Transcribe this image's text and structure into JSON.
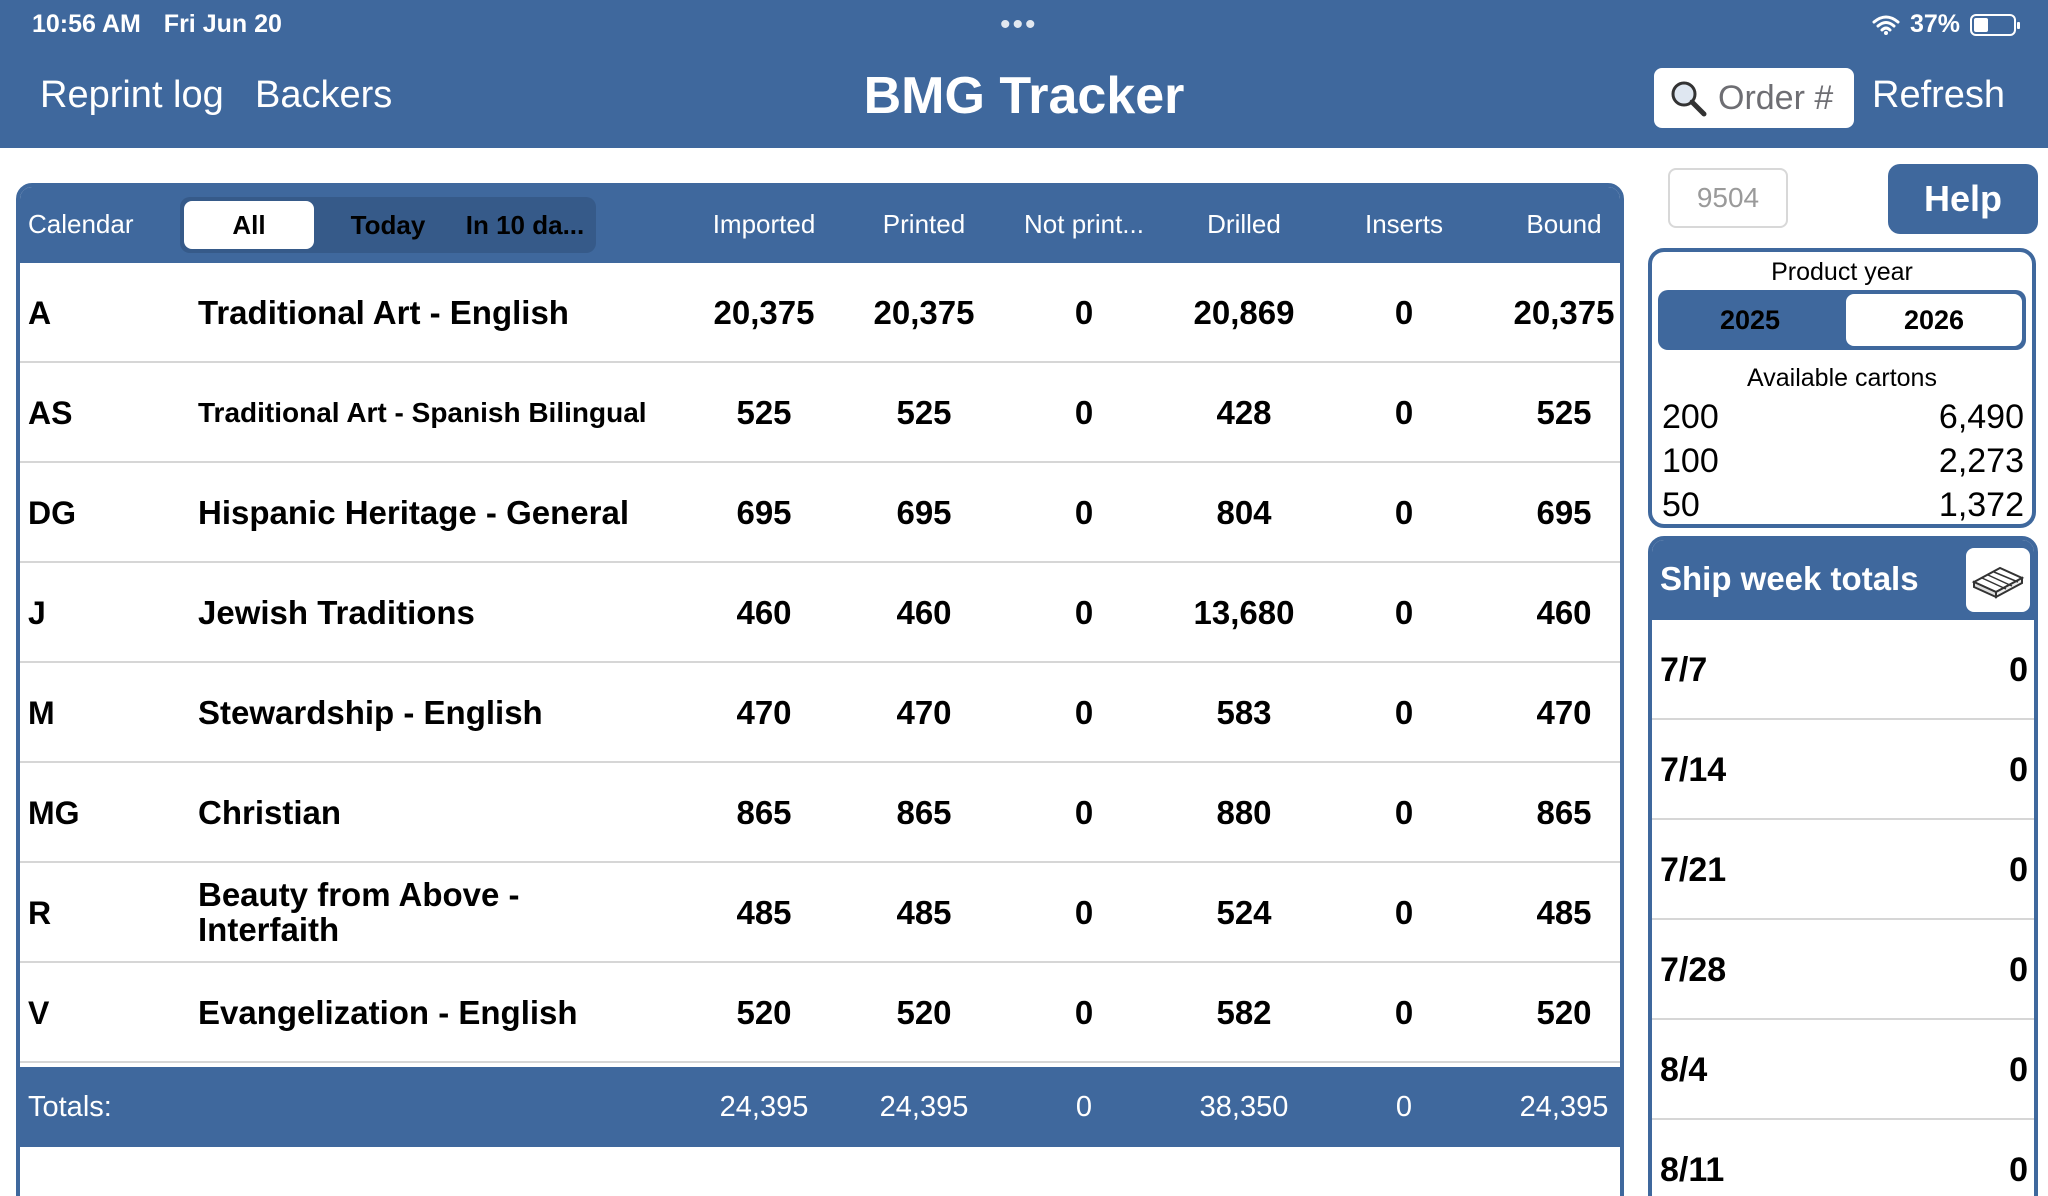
{
  "status_bar": {
    "time": "10:56 AM",
    "date": "Fri Jun 20",
    "battery": "37%",
    "battery_level": 0.37
  },
  "nav": {
    "left_links": [
      "Reprint log",
      "Backers"
    ],
    "title": "BMG Tracker",
    "search_placeholder": "Order #",
    "refresh_label": "Refresh"
  },
  "table": {
    "calendar_label": "Calendar",
    "filter_options": [
      "All",
      "Today",
      "In 10 da..."
    ],
    "selected_filter": "All",
    "columns": [
      "Imported",
      "Printed",
      "Not print...",
      "Drilled",
      "Inserts",
      "Bound"
    ],
    "rows": [
      {
        "code": "A",
        "name": "Traditional Art - English",
        "values": [
          "20,375",
          "20,375",
          "0",
          "20,869",
          "0",
          "20,375"
        ]
      },
      {
        "code": "AS",
        "name": "Traditional Art - Spanish Bilingual",
        "values": [
          "525",
          "525",
          "0",
          "428",
          "0",
          "525"
        ]
      },
      {
        "code": "DG",
        "name": "Hispanic Heritage - General",
        "values": [
          "695",
          "695",
          "0",
          "804",
          "0",
          "695"
        ]
      },
      {
        "code": "J",
        "name": "Jewish Traditions",
        "values": [
          "460",
          "460",
          "0",
          "13,680",
          "0",
          "460"
        ]
      },
      {
        "code": "M",
        "name": "Stewardship - English",
        "values": [
          "470",
          "470",
          "0",
          "583",
          "0",
          "470"
        ]
      },
      {
        "code": "MG",
        "name": "Christian",
        "values": [
          "865",
          "865",
          "0",
          "880",
          "0",
          "865"
        ]
      },
      {
        "code": "R",
        "name": "Beauty from Above - Interfaith",
        "values": [
          "485",
          "485",
          "0",
          "524",
          "0",
          "485"
        ]
      },
      {
        "code": "V",
        "name": "Evangelization - English",
        "values": [
          "520",
          "520",
          "0",
          "582",
          "0",
          "520"
        ]
      }
    ],
    "totals_label": "Totals:",
    "totals": [
      "24,395",
      "24,395",
      "0",
      "38,350",
      "0",
      "24,395"
    ]
  },
  "side": {
    "year_value": "9504",
    "help_label": "Help",
    "product_year_label": "Product year",
    "years": [
      "2025",
      "2026"
    ],
    "selected_year": "2026",
    "available_cartons_label": "Available cartons",
    "cartons": [
      {
        "size": "200",
        "count": "6,490"
      },
      {
        "size": "100",
        "count": "2,273"
      },
      {
        "size": "50",
        "count": "1,372"
      }
    ],
    "ship_week_title": "Ship week totals",
    "ship_weeks": [
      {
        "week": "7/7",
        "total": "0"
      },
      {
        "week": "7/14",
        "total": "0"
      },
      {
        "week": "7/21",
        "total": "0"
      },
      {
        "week": "7/28",
        "total": "0"
      },
      {
        "week": "8/4",
        "total": "0"
      },
      {
        "week": "8/11",
        "total": "0"
      }
    ]
  },
  "icons": {
    "search": "magnifying-glass-icon",
    "pallet": "pallet-icon",
    "wifi": "wifi-icon",
    "battery": "battery-icon"
  },
  "colors": {
    "accent": "#3f689d",
    "accent_dark": "#365a89",
    "divider": "#d6d6d6"
  }
}
